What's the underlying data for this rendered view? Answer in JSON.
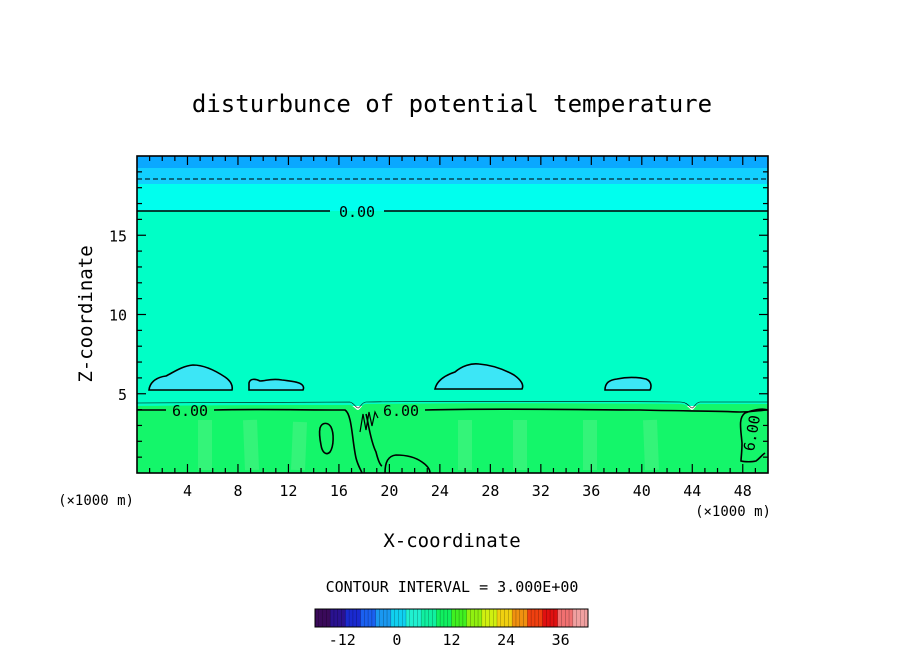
{
  "chart_data": {
    "type": "contour",
    "title": "disturbunce of potential temperature",
    "xlabel": "X-coordinate",
    "ylabel": "Z-coordinate",
    "x_unit": "(×1000 m)",
    "xlim": [
      0,
      50
    ],
    "ylim": [
      0,
      20
    ],
    "x_ticks": [
      "4",
      "8",
      "12",
      "16",
      "20",
      "24",
      "28",
      "32",
      "36",
      "40",
      "44",
      "48"
    ],
    "x_tick_values": [
      4,
      8,
      12,
      16,
      20,
      24,
      28,
      32,
      36,
      40,
      44,
      48
    ],
    "y_ticks": [
      "5",
      "10",
      "15"
    ],
    "y_tick_values": [
      5,
      10,
      15
    ],
    "contour_interval": "CONTOUR INTERVAL = 3.000E+00",
    "contour_labels": [
      {
        "text": "0.00",
        "x": 17.5,
        "z": 16.5
      },
      {
        "text": "6.00",
        "x": 4.5,
        "z": 3.9
      },
      {
        "text": "6.00",
        "x": 21.0,
        "z": 3.8
      },
      {
        "text": "6.00",
        "x": 49.0,
        "z": 2.5
      }
    ],
    "colorbar": {
      "ticks": [
        "-12",
        "0",
        "12",
        "24",
        "36"
      ],
      "tick_values": [
        -12,
        0,
        12,
        24,
        36
      ],
      "range": [
        -18,
        42
      ],
      "colors": [
        "#3a0a5a",
        "#2a1290",
        "#1a2ad0",
        "#1a60f0",
        "#1a98f0",
        "#10d0f0",
        "#20f0d0",
        "#10f0a0",
        "#10f060",
        "#40f020",
        "#90f010",
        "#d0f010",
        "#f0d010",
        "#f09010",
        "#f04010",
        "#e01010",
        "#f07070",
        "#f0a0a0"
      ]
    },
    "fills": {
      "top_dark": "#0aa8ff",
      "top_mid": "#12d0ff",
      "upper": "#00ffee",
      "mid": "#00ffc6",
      "low": "#14f66a",
      "bubble": "#3ce6f6"
    }
  }
}
